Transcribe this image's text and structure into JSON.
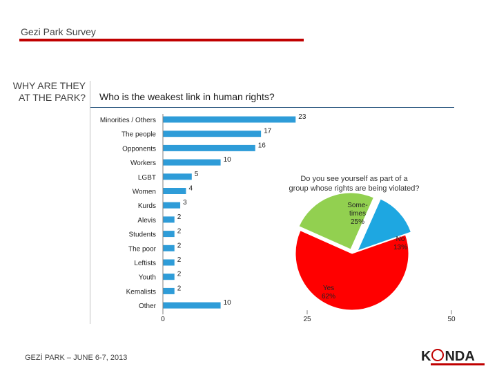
{
  "header": {
    "survey_title": "Gezi Park Survey"
  },
  "section_label": "WHY ARE THEY AT THE PARK?",
  "footer": {
    "date_text": "GEZİ PARK – JUNE 6-7, 2013"
  },
  "logo": {
    "brand": "KONDA",
    "brand_pre": "K",
    "brand_post": "NDA"
  },
  "colors": {
    "bar": "#2e9cd8",
    "rule_red": "#c00000",
    "pie_yes": "#ff0000",
    "pie_sometimes": "#92d050",
    "pie_no": "#1ea7e1"
  },
  "chart_data": [
    {
      "type": "bar",
      "orientation": "horizontal",
      "title": "Who is the weakest link in human rights?",
      "categories": [
        "Minorities / Others",
        "The people",
        "Opponents",
        "Workers",
        "LGBT",
        "Women",
        "Kurds",
        "Alevis",
        "Students",
        "The poor",
        "Leftists",
        "Youth",
        "Kemalists",
        "Other"
      ],
      "values": [
        23,
        17,
        16,
        10,
        5,
        4,
        3,
        2,
        2,
        2,
        2,
        2,
        2,
        10
      ],
      "xlim": [
        0,
        50
      ],
      "xticks": [
        0,
        25,
        50
      ],
      "grid": false,
      "data_labels": true
    },
    {
      "type": "pie",
      "title": "Do you see yourself as part of a group whose rights are being violated?",
      "slices": [
        {
          "label": "Yes",
          "value": 62,
          "text": "62%"
        },
        {
          "label": "Sometimes",
          "label_display": "Some-times",
          "value": 25,
          "text": "25%"
        },
        {
          "label": "No",
          "value": 13,
          "text": "13%"
        }
      ]
    }
  ]
}
